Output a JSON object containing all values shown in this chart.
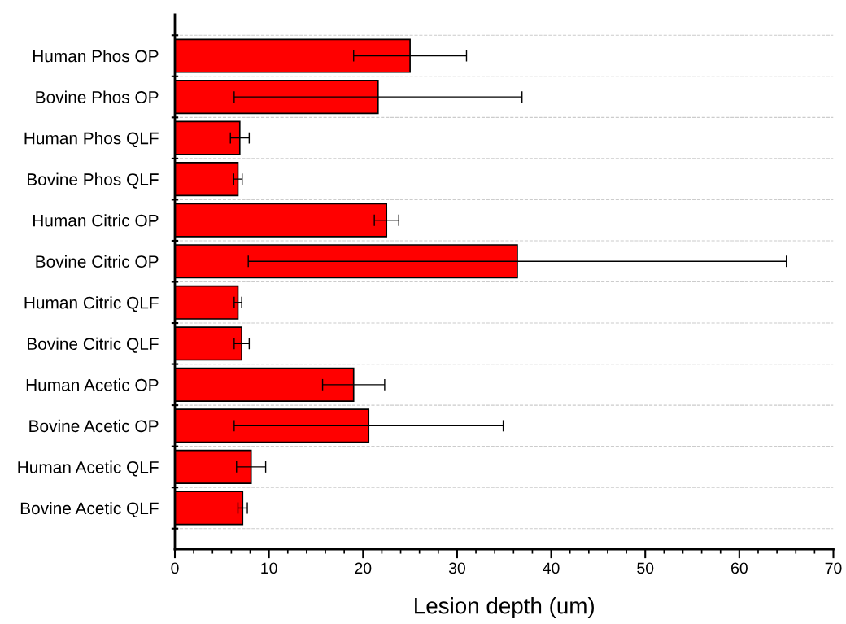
{
  "chart_data": {
    "type": "bar",
    "orientation": "horizontal",
    "xlabel": "Lesion depth (um)",
    "categories": [
      "Human Phos OP",
      "Bovine Phos OP",
      "Human Phos QLF",
      "Bovine Phos QLF",
      "Human Citric OP",
      "Bovine Citric OP",
      "Human Citric QLF",
      "Bovine Citric QLF",
      "Human Acetic OP",
      "Bovine Acetic OP",
      "Human Acetic QLF",
      "Bovine Acetic QLF"
    ],
    "values": [
      25.0,
      21.6,
      6.9,
      6.7,
      22.5,
      36.4,
      6.7,
      7.1,
      19.0,
      20.6,
      8.1,
      7.2
    ],
    "errors": [
      6.0,
      15.3,
      1.0,
      0.45,
      1.3,
      28.6,
      0.4,
      0.8,
      3.3,
      14.3,
      1.55,
      0.5
    ],
    "color": "#ff0000",
    "xlim": [
      0,
      70
    ],
    "xticks": [
      0,
      10,
      20,
      30,
      40,
      50,
      60,
      70
    ],
    "grid": "y",
    "legend": false
  }
}
